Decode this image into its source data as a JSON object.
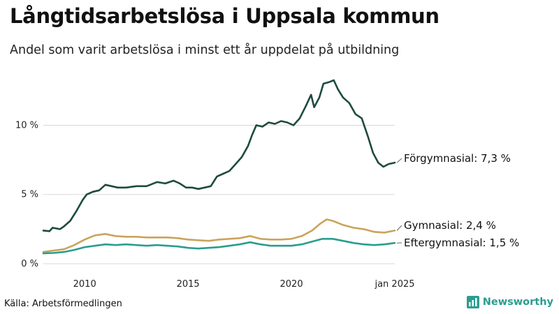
{
  "header": {
    "title": "Långtidsarbetslösa i Uppsala kommun",
    "subtitle": "Andel som varit arbetslösa i minst ett år uppdelat på utbildning"
  },
  "footer": {
    "source": "Källa: Arbetsförmedlingen",
    "brand": "Newsworthy"
  },
  "chart_data": {
    "type": "line",
    "title": "Långtidsarbetslösa i Uppsala kommun",
    "subtitle": "Andel som varit arbetslösa i minst ett år uppdelat på utbildning",
    "xlabel": "",
    "ylabel": "",
    "xlim": [
      2008.0,
      2025.0
    ],
    "ylim": [
      0,
      13.5
    ],
    "x_ticks": [
      {
        "value": 2010,
        "label": "2010"
      },
      {
        "value": 2015,
        "label": "2015"
      },
      {
        "value": 2020,
        "label": "2020"
      },
      {
        "value": 2025,
        "label": "jan 2025"
      }
    ],
    "y_ticks": [
      {
        "value": 0,
        "label": "0 %"
      },
      {
        "value": 5,
        "label": "5 %"
      },
      {
        "value": 10,
        "label": "10 %"
      }
    ],
    "grid": "horizontal",
    "legend": "direct-labels-right",
    "series": [
      {
        "name": "Förgymnasial",
        "end_label": "Förgymnasial: 7,3 %",
        "color": "#1e4a3f",
        "points": [
          [
            2008.0,
            2.4
          ],
          [
            2008.3,
            2.35
          ],
          [
            2008.45,
            2.6
          ],
          [
            2008.8,
            2.5
          ],
          [
            2009.0,
            2.7
          ],
          [
            2009.3,
            3.1
          ],
          [
            2009.6,
            3.8
          ],
          [
            2009.9,
            4.6
          ],
          [
            2010.1,
            5.0
          ],
          [
            2010.4,
            5.2
          ],
          [
            2010.7,
            5.3
          ],
          [
            2011.0,
            5.7
          ],
          [
            2011.3,
            5.6
          ],
          [
            2011.6,
            5.5
          ],
          [
            2012.0,
            5.5
          ],
          [
            2012.5,
            5.6
          ],
          [
            2013.0,
            5.6
          ],
          [
            2013.5,
            5.9
          ],
          [
            2013.9,
            5.8
          ],
          [
            2014.3,
            6.0
          ],
          [
            2014.6,
            5.8
          ],
          [
            2014.9,
            5.5
          ],
          [
            2015.2,
            5.5
          ],
          [
            2015.5,
            5.4
          ],
          [
            2015.8,
            5.5
          ],
          [
            2016.1,
            5.6
          ],
          [
            2016.4,
            6.3
          ],
          [
            2016.7,
            6.5
          ],
          [
            2017.0,
            6.7
          ],
          [
            2017.3,
            7.2
          ],
          [
            2017.6,
            7.7
          ],
          [
            2017.9,
            8.5
          ],
          [
            2018.1,
            9.3
          ],
          [
            2018.3,
            10.0
          ],
          [
            2018.6,
            9.9
          ],
          [
            2018.9,
            10.2
          ],
          [
            2019.2,
            10.1
          ],
          [
            2019.5,
            10.3
          ],
          [
            2019.8,
            10.2
          ],
          [
            2020.1,
            10.0
          ],
          [
            2020.4,
            10.5
          ],
          [
            2020.7,
            11.4
          ],
          [
            2020.95,
            12.2
          ],
          [
            2021.1,
            11.3
          ],
          [
            2021.35,
            12.0
          ],
          [
            2021.55,
            13.0
          ],
          [
            2021.8,
            13.1
          ],
          [
            2022.05,
            13.25
          ],
          [
            2022.25,
            12.6
          ],
          [
            2022.5,
            12.0
          ],
          [
            2022.8,
            11.6
          ],
          [
            2023.1,
            10.8
          ],
          [
            2023.4,
            10.5
          ],
          [
            2023.7,
            9.2
          ],
          [
            2023.95,
            8.0
          ],
          [
            2024.2,
            7.3
          ],
          [
            2024.45,
            7.0
          ],
          [
            2024.7,
            7.2
          ],
          [
            2025.0,
            7.3
          ]
        ]
      },
      {
        "name": "Gymnasial",
        "end_label": "Gymnasial: 2,4 %",
        "color": "#c9a45c",
        "points": [
          [
            2008.0,
            0.85
          ],
          [
            2008.5,
            0.95
          ],
          [
            2009.0,
            1.05
          ],
          [
            2009.5,
            1.35
          ],
          [
            2010.0,
            1.75
          ],
          [
            2010.5,
            2.05
          ],
          [
            2011.0,
            2.15
          ],
          [
            2011.5,
            2.0
          ],
          [
            2012.0,
            1.95
          ],
          [
            2012.5,
            1.95
          ],
          [
            2013.0,
            1.9
          ],
          [
            2013.5,
            1.9
          ],
          [
            2014.0,
            1.9
          ],
          [
            2014.5,
            1.85
          ],
          [
            2015.0,
            1.75
          ],
          [
            2015.5,
            1.7
          ],
          [
            2016.0,
            1.65
          ],
          [
            2016.5,
            1.75
          ],
          [
            2017.0,
            1.8
          ],
          [
            2017.5,
            1.85
          ],
          [
            2018.0,
            2.0
          ],
          [
            2018.5,
            1.8
          ],
          [
            2019.0,
            1.75
          ],
          [
            2019.5,
            1.75
          ],
          [
            2020.0,
            1.8
          ],
          [
            2020.5,
            2.0
          ],
          [
            2021.0,
            2.4
          ],
          [
            2021.4,
            2.9
          ],
          [
            2021.7,
            3.2
          ],
          [
            2022.0,
            3.1
          ],
          [
            2022.5,
            2.8
          ],
          [
            2023.0,
            2.6
          ],
          [
            2023.5,
            2.5
          ],
          [
            2024.0,
            2.3
          ],
          [
            2024.5,
            2.25
          ],
          [
            2025.0,
            2.4
          ]
        ]
      },
      {
        "name": "Eftergymnasial",
        "end_label": "Eftergymnasial: 1,5 %",
        "color": "#2a9d8f",
        "points": [
          [
            2008.0,
            0.75
          ],
          [
            2008.5,
            0.78
          ],
          [
            2009.0,
            0.85
          ],
          [
            2009.5,
            1.0
          ],
          [
            2010.0,
            1.2
          ],
          [
            2010.5,
            1.3
          ],
          [
            2011.0,
            1.4
          ],
          [
            2011.5,
            1.35
          ],
          [
            2012.0,
            1.4
          ],
          [
            2012.5,
            1.35
          ],
          [
            2013.0,
            1.3
          ],
          [
            2013.5,
            1.35
          ],
          [
            2014.0,
            1.3
          ],
          [
            2014.5,
            1.25
          ],
          [
            2015.0,
            1.15
          ],
          [
            2015.5,
            1.1
          ],
          [
            2016.0,
            1.15
          ],
          [
            2016.5,
            1.2
          ],
          [
            2017.0,
            1.3
          ],
          [
            2017.5,
            1.4
          ],
          [
            2018.0,
            1.55
          ],
          [
            2018.5,
            1.4
          ],
          [
            2019.0,
            1.3
          ],
          [
            2019.5,
            1.3
          ],
          [
            2020.0,
            1.3
          ],
          [
            2020.5,
            1.4
          ],
          [
            2021.0,
            1.6
          ],
          [
            2021.5,
            1.8
          ],
          [
            2022.0,
            1.8
          ],
          [
            2022.5,
            1.65
          ],
          [
            2023.0,
            1.5
          ],
          [
            2023.5,
            1.4
          ],
          [
            2024.0,
            1.35
          ],
          [
            2024.5,
            1.4
          ],
          [
            2025.0,
            1.5
          ]
        ]
      }
    ]
  }
}
